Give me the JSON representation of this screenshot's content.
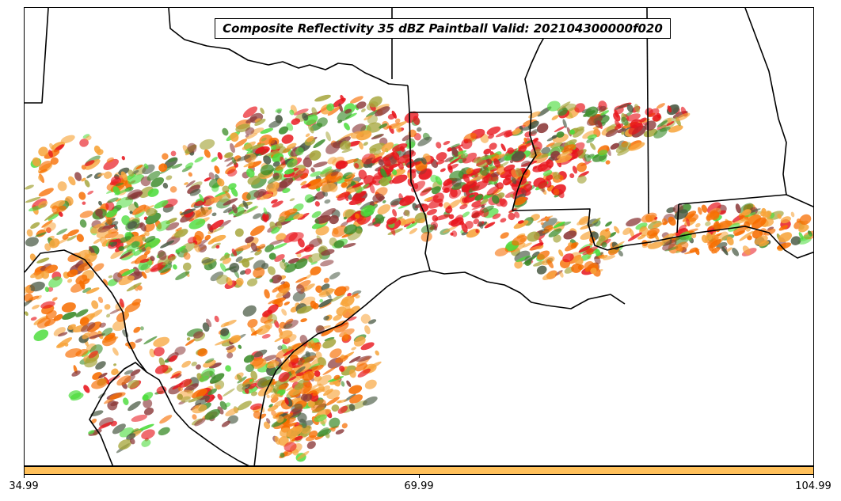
{
  "title": "Composite Reflectivity 35 dBZ Paintball Valid: 202104300000f020",
  "colorbar": {
    "color": "#ffc05a",
    "tick_labels": [
      "34.99",
      "69.99",
      "104.99"
    ]
  },
  "paint_colors": [
    "#e8141b",
    "#f76d00",
    "#f7a43a",
    "#8c3a3a",
    "#3c8c2a",
    "#4cdc3c",
    "#a5a53a",
    "#4a5a44"
  ]
}
